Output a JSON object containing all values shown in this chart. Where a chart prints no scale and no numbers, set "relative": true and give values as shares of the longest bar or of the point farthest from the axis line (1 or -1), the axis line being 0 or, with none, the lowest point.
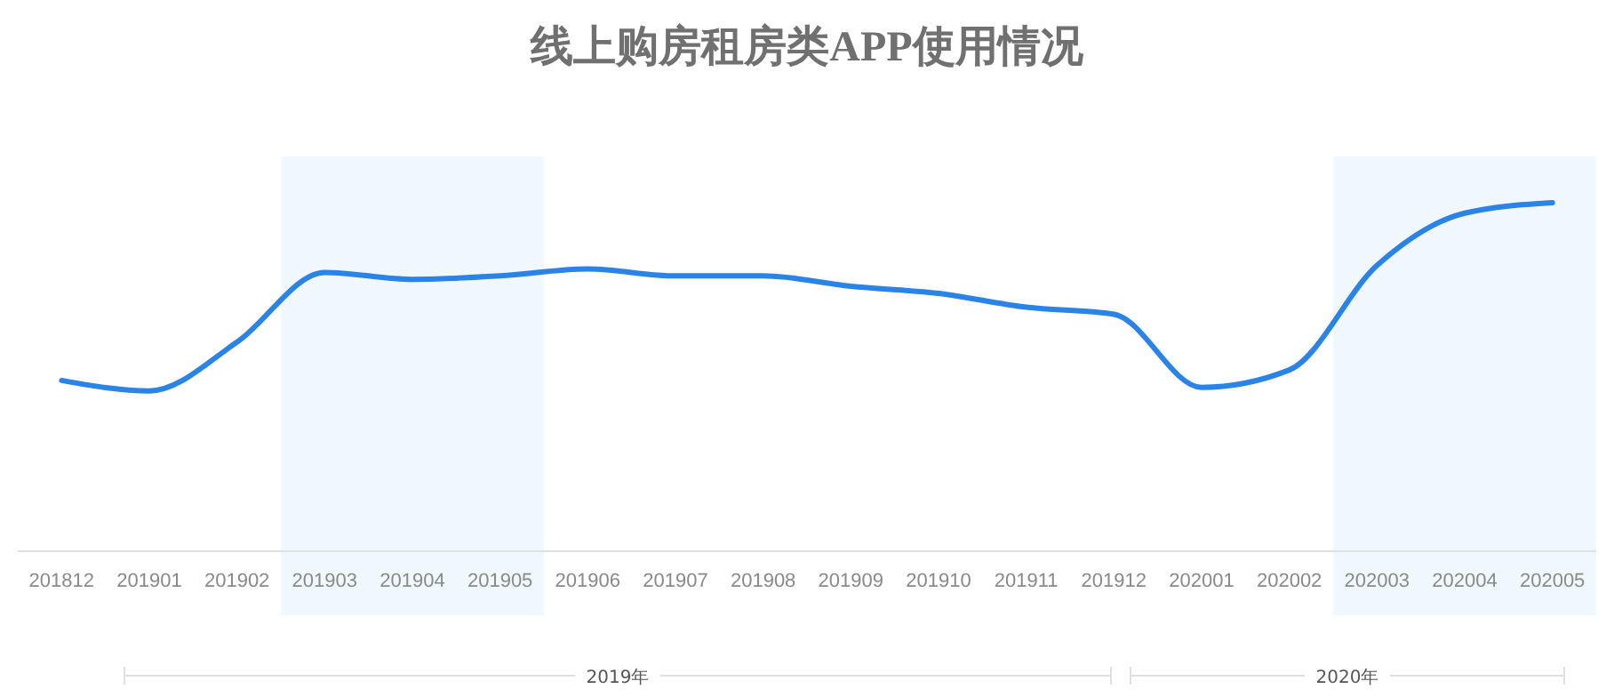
{
  "chart_data": {
    "type": "line",
    "title": "线上购房租房类APP使用情况",
    "relative": true,
    "categories": [
      "201812",
      "201901",
      "201902",
      "201903",
      "201904",
      "201905",
      "201906",
      "201907",
      "201908",
      "201909",
      "201910",
      "201911",
      "201912",
      "202001",
      "202002",
      "202003",
      "202004",
      "202005"
    ],
    "series": [
      {
        "color": "#2a83e6",
        "values": [
          0.49,
          0.46,
          0.6,
          0.8,
          0.78,
          0.79,
          0.81,
          0.79,
          0.79,
          0.76,
          0.74,
          0.7,
          0.68,
          0.47,
          0.52,
          0.82,
          0.97,
          1
        ]
      }
    ],
    "bands": [
      {
        "axis": "x",
        "from": "201903",
        "to": "201905",
        "color": "#f0f8fd"
      },
      {
        "axis": "x",
        "from": "202003",
        "to": "202005",
        "color": "#f0f8fd"
      }
    ],
    "annotations": [
      "2019年",
      "2020年"
    ],
    "marker": "none",
    "line_style": "solid"
  }
}
